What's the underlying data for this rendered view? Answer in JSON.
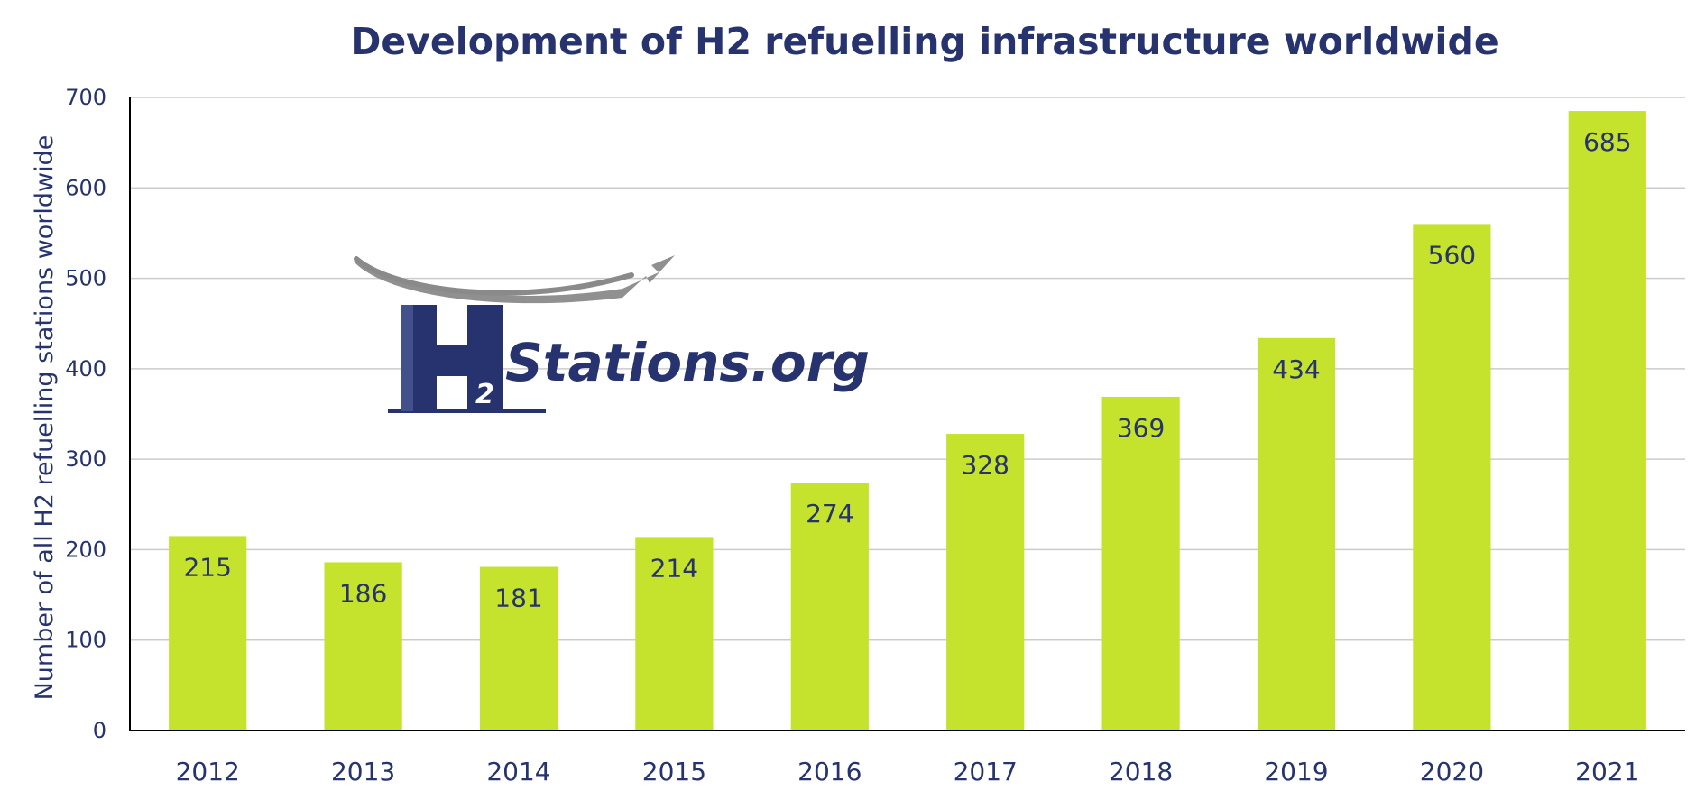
{
  "colors": {
    "bar": "#c5e22d",
    "text": "#27336e",
    "grid": "#cccccc",
    "axis": "#000000",
    "logo_arrow": "#8a8a8a"
  },
  "logo": {
    "main": "Stations.org",
    "h_letter": "H",
    "subscript": "2"
  },
  "chart_data": {
    "type": "bar",
    "title": "Development of H2 refuelling infrastructure worldwide",
    "ylabel": "Number of all H2 refuelling stations worldwide",
    "xlabel": "",
    "categories": [
      "2012",
      "2013",
      "2014",
      "2015",
      "2016",
      "2017",
      "2018",
      "2019",
      "2020",
      "2021"
    ],
    "values": [
      215,
      186,
      181,
      214,
      274,
      328,
      369,
      434,
      560,
      685
    ],
    "ylim": [
      0,
      700
    ],
    "yticks": [
      0,
      100,
      200,
      300,
      400,
      500,
      600,
      700
    ],
    "grid": true,
    "legend": "none",
    "data_labels": true
  }
}
